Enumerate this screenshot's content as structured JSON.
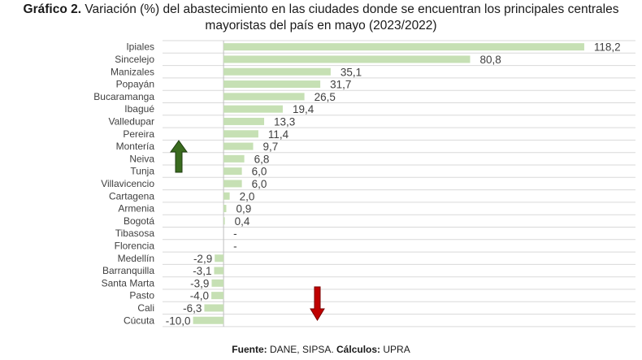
{
  "title": {
    "prefix": "Gráfico 2.",
    "line1": "Variación (%) del abastecimiento en las ciudades donde se encuentran los principales centrales",
    "line2": "mayoristas del país en mayo (2023/2022)"
  },
  "footer": {
    "source_label": "Fuente:",
    "source_value": "DANE, SIPSA.",
    "calc_label": "Cálculos:",
    "calc_value": "UPRA"
  },
  "colors": {
    "bar": "#c6e0b4",
    "grid": "#d9d9d9",
    "axis": "#bfbfbf",
    "up_arrow": "#3a6b1f",
    "down_arrow": "#c00000"
  },
  "icons": [
    "up-arrow-icon",
    "down-arrow-icon"
  ],
  "chart_data": {
    "type": "bar",
    "orientation": "horizontal",
    "categories": [
      "Ipiales",
      "Sincelejo",
      "Manizales",
      "Popayán",
      "Bucaramanga",
      "Ibagué",
      "Valledupar",
      "Pereira",
      "Montería",
      "Neiva",
      "Tunja",
      "Villavicencio",
      "Cartagena",
      "Armenia",
      "Bogotá",
      "Tibasosa",
      "Florencia",
      "Medellín",
      "Barranquilla",
      "Santa Marta",
      "Pasto",
      "Cali",
      "Cúcuta"
    ],
    "values": [
      118.2,
      80.8,
      35.1,
      31.7,
      26.5,
      19.4,
      13.3,
      11.4,
      9.7,
      6.8,
      6.0,
      6.0,
      2.0,
      0.9,
      0.4,
      null,
      null,
      -2.9,
      -3.1,
      -3.9,
      -4.0,
      -6.3,
      -10.0
    ],
    "labels": [
      "118,2",
      "80,8",
      "35,1",
      "31,7",
      "26,5",
      "19,4",
      "13,3",
      "11,4",
      "9,7",
      "6,8",
      "6,0",
      "6,0",
      "2,0",
      "0,9",
      "0,4",
      "-",
      "-",
      "-2,9",
      "-3,1",
      "-3,9",
      "-4,0",
      "-6,3",
      "-10,0"
    ],
    "xlim": [
      -20,
      135
    ],
    "grid": true,
    "legend": "none"
  }
}
